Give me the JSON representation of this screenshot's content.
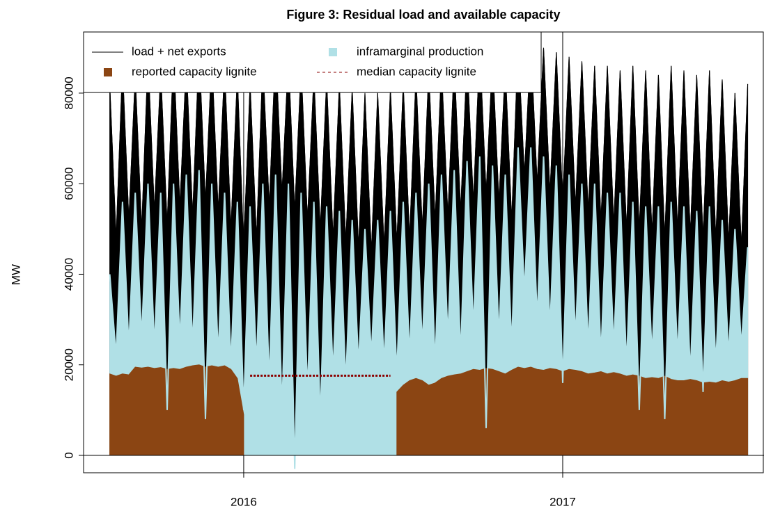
{
  "chart_data": {
    "type": "line",
    "title": "Figure 3: Residual load and available capacity",
    "ylabel": "MW",
    "xlim": [
      2015.498,
      2017.631
    ],
    "xticks": [
      2016,
      2017
    ],
    "ylim": [
      -3840,
      93500
    ],
    "yticks": [
      0,
      20000,
      40000,
      60000,
      80000
    ],
    "legend": "top-left",
    "x": [
      2015.58,
      2015.6,
      2015.62,
      2015.64,
      2015.66,
      2015.68,
      2015.7,
      2015.72,
      2015.74,
      2015.76,
      2015.78,
      2015.8,
      2015.82,
      2015.84,
      2015.86,
      2015.88,
      2015.9,
      2015.92,
      2015.94,
      2015.96,
      2015.98,
      2016.0,
      2016.02,
      2016.04,
      2016.06,
      2016.08,
      2016.1,
      2016.12,
      2016.14,
      2016.16,
      2016.18,
      2016.2,
      2016.22,
      2016.24,
      2016.26,
      2016.28,
      2016.3,
      2016.32,
      2016.34,
      2016.36,
      2016.38,
      2016.4,
      2016.42,
      2016.44,
      2016.46,
      2016.48,
      2016.5,
      2016.52,
      2016.54,
      2016.56,
      2016.58,
      2016.6,
      2016.62,
      2016.64,
      2016.66,
      2016.68,
      2016.7,
      2016.72,
      2016.74,
      2016.76,
      2016.78,
      2016.8,
      2016.82,
      2016.84,
      2016.86,
      2016.88,
      2016.9,
      2016.92,
      2016.94,
      2016.96,
      2016.98,
      2017.0,
      2017.02,
      2017.04,
      2017.06,
      2017.08,
      2017.1,
      2017.12,
      2017.14,
      2017.16,
      2017.18,
      2017.2,
      2017.22,
      2017.24,
      2017.26,
      2017.28,
      2017.3,
      2017.32,
      2017.34,
      2017.36,
      2017.38,
      2017.4,
      2017.42,
      2017.44,
      2017.46,
      2017.48,
      2017.5,
      2017.52,
      2017.54,
      2017.56,
      2017.58
    ],
    "series": [
      {
        "name": "load + net exports",
        "color": "#000000",
        "style": "line",
        "values": [
          82000,
          48000,
          86000,
          52000,
          84000,
          50000,
          88000,
          54000,
          85000,
          51000,
          89000,
          55000,
          87000,
          53000,
          90000,
          56000,
          88000,
          54000,
          86000,
          50000,
          84000,
          46000,
          82000,
          48000,
          87000,
          55000,
          90000,
          58000,
          88000,
          54000,
          86000,
          52000,
          84000,
          50000,
          83000,
          48000,
          82000,
          47000,
          81000,
          46000,
          80000,
          45000,
          80000,
          46000,
          81000,
          47000,
          82000,
          48000,
          84000,
          50000,
          85000,
          52000,
          86000,
          53000,
          87000,
          54000,
          88000,
          56000,
          90000,
          58000,
          88000,
          56000,
          86000,
          52000,
          91000,
          62000,
          91000,
          60000,
          90000,
          58000,
          89000,
          56000,
          88000,
          55000,
          87000,
          54000,
          86000,
          52000,
          86000,
          51000,
          85000,
          50000,
          86000,
          50000,
          85000,
          49000,
          84000,
          48000,
          86000,
          50000,
          85000,
          49000,
          84000,
          48000,
          85000,
          48000,
          83000,
          47000,
          80000,
          46000,
          82000
        ]
      },
      {
        "name": "inframarginal production",
        "color": "#b0e0e6",
        "style": "area",
        "values": [
          40000,
          22000,
          56000,
          24000,
          58000,
          26000,
          60000,
          24000,
          58000,
          10000,
          60000,
          25000,
          62000,
          24000,
          63000,
          8000,
          60000,
          22000,
          58000,
          20000,
          56000,
          10000,
          55000,
          20000,
          60000,
          16000,
          62000,
          10000,
          60000,
          -3000,
          58000,
          14000,
          56000,
          8000,
          55000,
          18000,
          54000,
          16000,
          52000,
          20000,
          50000,
          22000,
          52000,
          20000,
          54000,
          18000,
          56000,
          22000,
          58000,
          24000,
          60000,
          20000,
          62000,
          26000,
          63000,
          22000,
          65000,
          28000,
          66000,
          6000,
          64000,
          26000,
          62000,
          24000,
          68000,
          36000,
          68000,
          30000,
          66000,
          28000,
          64000,
          16000,
          62000,
          26000,
          60000,
          24000,
          60000,
          22000,
          58000,
          24000,
          58000,
          20000,
          56000,
          10000,
          55000,
          22000,
          55000,
          8000,
          56000,
          22000,
          55000,
          18000,
          54000,
          14000,
          55000,
          20000,
          52000,
          22000,
          50000,
          24000,
          46000
        ]
      },
      {
        "name": "reported capacity lignite",
        "color": "#8b4513",
        "style": "area",
        "values": [
          18000,
          17500,
          18000,
          17800,
          19500,
          19300,
          19500,
          19200,
          19400,
          19000,
          19200,
          19000,
          19500,
          19800,
          20000,
          19500,
          19800,
          19500,
          19800,
          19000,
          17000,
          9000,
          null,
          null,
          null,
          null,
          null,
          null,
          null,
          null,
          null,
          null,
          null,
          null,
          null,
          null,
          null,
          null,
          null,
          null,
          null,
          null,
          null,
          null,
          null,
          14000,
          15500,
          16500,
          17000,
          16500,
          15500,
          16000,
          17000,
          17500,
          17800,
          18000,
          18500,
          19000,
          18800,
          19200,
          19000,
          18500,
          18000,
          18800,
          19500,
          19200,
          19500,
          19000,
          18800,
          19200,
          19000,
          18500,
          19000,
          18800,
          18500,
          18000,
          18200,
          18500,
          18000,
          18300,
          18000,
          17500,
          17800,
          17500,
          17000,
          17200,
          17000,
          17500,
          16800,
          16500,
          16500,
          16800,
          16500,
          16000,
          16200,
          16000,
          16500,
          16200,
          16500,
          17000,
          17000
        ]
      },
      {
        "name": "median capacity lignite",
        "color": "#8b0000",
        "style": "dashed",
        "x": [
          2016.02,
          2016.46
        ],
        "values": [
          17600,
          17600
        ]
      }
    ]
  }
}
